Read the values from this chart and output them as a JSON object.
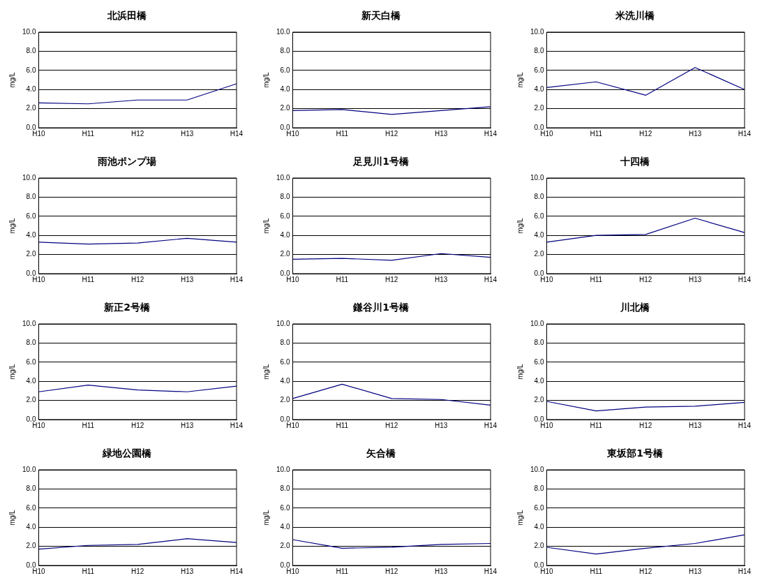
{
  "chart_data": [
    {
      "type": "line",
      "title": "北浜田橋",
      "categories": [
        "H10",
        "H11",
        "H12",
        "H13",
        "H14"
      ],
      "ylabel": "mg/L",
      "ylim": [
        0,
        10
      ],
      "yticks": [
        {
          "value": 0,
          "label": "0.0"
        },
        {
          "value": 2,
          "label": "2.0"
        },
        {
          "value": 4,
          "label": "4.0"
        },
        {
          "value": 6,
          "label": "6.0"
        },
        {
          "value": 8,
          "label": "8.0"
        },
        {
          "value": 10,
          "label": "10.0"
        }
      ],
      "grid": "y",
      "legend": false,
      "marker": "none",
      "series": [
        {
          "color": "#000080",
          "values": [
            2.6,
            2.5,
            2.9,
            2.9,
            4.6
          ]
        }
      ]
    },
    {
      "type": "line",
      "title": "新天白橋",
      "categories": [
        "H10",
        "H11",
        "H12",
        "H13",
        "H14"
      ],
      "ylabel": "mg/L",
      "ylim": [
        0,
        10
      ],
      "yticks": [
        {
          "value": 0,
          "label": "0.0"
        },
        {
          "value": 2,
          "label": "2.0"
        },
        {
          "value": 4,
          "label": "4.0"
        },
        {
          "value": 6,
          "label": "6.0"
        },
        {
          "value": 8,
          "label": "8.0"
        },
        {
          "value": 10,
          "label": "10.0"
        }
      ],
      "grid": "y",
      "legend": false,
      "marker": "none",
      "series": [
        {
          "color": "#000080",
          "values": [
            1.8,
            1.9,
            1.4,
            1.8,
            2.2
          ]
        }
      ]
    },
    {
      "type": "line",
      "title": "米洗川橋",
      "categories": [
        "H10",
        "H11",
        "H12",
        "H13",
        "H14"
      ],
      "ylabel": "mg/L",
      "ylim": [
        0,
        10
      ],
      "yticks": [
        {
          "value": 0,
          "label": "0.0"
        },
        {
          "value": 2,
          "label": "2.0"
        },
        {
          "value": 4,
          "label": "4.0"
        },
        {
          "value": 6,
          "label": "6.0"
        },
        {
          "value": 8,
          "label": "8.0"
        },
        {
          "value": 10,
          "label": "10.0"
        }
      ],
      "grid": "y",
      "legend": false,
      "marker": "none",
      "series": [
        {
          "color": "#000080",
          "values": [
            4.2,
            4.8,
            3.4,
            6.3,
            4.0
          ]
        }
      ]
    },
    {
      "type": "line",
      "title": "雨池ポンプ場",
      "categories": [
        "H10",
        "H11",
        "H12",
        "H13",
        "H14"
      ],
      "ylabel": "mg/L",
      "ylim": [
        0,
        10
      ],
      "yticks": [
        {
          "value": 0,
          "label": "0.0"
        },
        {
          "value": 2,
          "label": "2.0"
        },
        {
          "value": 4,
          "label": "4.0"
        },
        {
          "value": 6,
          "label": "6.0"
        },
        {
          "value": 8,
          "label": "8.0"
        },
        {
          "value": 10,
          "label": "10.0"
        }
      ],
      "grid": "y",
      "legend": false,
      "marker": "none",
      "series": [
        {
          "color": "#000080",
          "values": [
            3.3,
            3.1,
            3.2,
            3.7,
            3.3
          ]
        }
      ]
    },
    {
      "type": "line",
      "title": "足見川1号橋",
      "categories": [
        "H10",
        "H11",
        "H12",
        "H13",
        "H14"
      ],
      "ylabel": "mg/L",
      "ylim": [
        0,
        10
      ],
      "yticks": [
        {
          "value": 0,
          "label": "0.0"
        },
        {
          "value": 2,
          "label": "2.0"
        },
        {
          "value": 4,
          "label": "4.0"
        },
        {
          "value": 6,
          "label": "6.0"
        },
        {
          "value": 8,
          "label": "8.0"
        },
        {
          "value": 10,
          "label": "10.0"
        }
      ],
      "grid": "y",
      "legend": false,
      "marker": "none",
      "series": [
        {
          "color": "#000080",
          "values": [
            1.5,
            1.6,
            1.4,
            2.1,
            1.7
          ]
        }
      ]
    },
    {
      "type": "line",
      "title": "十四橋",
      "categories": [
        "H10",
        "H11",
        "H12",
        "H13",
        "H14"
      ],
      "ylabel": "mg/L",
      "ylim": [
        0,
        10
      ],
      "yticks": [
        {
          "value": 0,
          "label": "0.0"
        },
        {
          "value": 2,
          "label": "2.0"
        },
        {
          "value": 4,
          "label": "4.0"
        },
        {
          "value": 6,
          "label": "6.0"
        },
        {
          "value": 8,
          "label": "8.0"
        },
        {
          "value": 10,
          "label": "10.0"
        }
      ],
      "grid": "y",
      "legend": false,
      "marker": "none",
      "series": [
        {
          "color": "#000080",
          "values": [
            3.3,
            4.0,
            4.1,
            5.8,
            4.3
          ]
        }
      ]
    },
    {
      "type": "line",
      "title": "新正2号橋",
      "categories": [
        "H10",
        "H11",
        "H12",
        "H13",
        "H14"
      ],
      "ylabel": "mg/L",
      "ylim": [
        0,
        10
      ],
      "yticks": [
        {
          "value": 0,
          "label": "0.0"
        },
        {
          "value": 2,
          "label": "2.0"
        },
        {
          "value": 4,
          "label": "4.0"
        },
        {
          "value": 6,
          "label": "6.0"
        },
        {
          "value": 8,
          "label": "8.0"
        },
        {
          "value": 10,
          "label": "10.0"
        }
      ],
      "grid": "y",
      "legend": false,
      "marker": "none",
      "series": [
        {
          "color": "#000080",
          "values": [
            2.9,
            3.6,
            3.1,
            2.9,
            3.5
          ]
        }
      ]
    },
    {
      "type": "line",
      "title": "鎌谷川1号橋",
      "categories": [
        "H10",
        "H11",
        "H12",
        "H13",
        "H14"
      ],
      "ylabel": "mg/L",
      "ylim": [
        0,
        10
      ],
      "yticks": [
        {
          "value": 0,
          "label": "0.0"
        },
        {
          "value": 2,
          "label": "2.0"
        },
        {
          "value": 4,
          "label": "4.0"
        },
        {
          "value": 6,
          "label": "6.0"
        },
        {
          "value": 8,
          "label": "8.0"
        },
        {
          "value": 10,
          "label": "10.0"
        }
      ],
      "grid": "y",
      "legend": false,
      "marker": "none",
      "series": [
        {
          "color": "#000080",
          "values": [
            2.2,
            3.7,
            2.2,
            2.1,
            1.5
          ]
        }
      ]
    },
    {
      "type": "line",
      "title": "川北橋",
      "categories": [
        "H10",
        "H11",
        "H12",
        "H13",
        "H14"
      ],
      "ylabel": "mg/L",
      "ylim": [
        0,
        10
      ],
      "yticks": [
        {
          "value": 0,
          "label": "0.0"
        },
        {
          "value": 2,
          "label": "2.0"
        },
        {
          "value": 4,
          "label": "4.0"
        },
        {
          "value": 6,
          "label": "6.0"
        },
        {
          "value": 8,
          "label": "8.0"
        },
        {
          "value": 10,
          "label": "10.0"
        }
      ],
      "grid": "y",
      "legend": false,
      "marker": "none",
      "series": [
        {
          "color": "#000080",
          "values": [
            1.9,
            0.9,
            1.3,
            1.4,
            1.8
          ]
        }
      ]
    },
    {
      "type": "line",
      "title": "緑地公園橋",
      "categories": [
        "H10",
        "H11",
        "H12",
        "H13",
        "H14"
      ],
      "ylabel": "mg/L",
      "ylim": [
        0,
        10
      ],
      "yticks": [
        {
          "value": 0,
          "label": "0.0"
        },
        {
          "value": 2,
          "label": "2.0"
        },
        {
          "value": 4,
          "label": "4.0"
        },
        {
          "value": 6,
          "label": "6.0"
        },
        {
          "value": 8,
          "label": "8.0"
        },
        {
          "value": 10,
          "label": "10.0"
        }
      ],
      "grid": "y",
      "legend": false,
      "marker": "none",
      "series": [
        {
          "color": "#000080",
          "values": [
            1.7,
            2.1,
            2.2,
            2.8,
            2.4
          ]
        }
      ]
    },
    {
      "type": "line",
      "title": "矢合橋",
      "categories": [
        "H10",
        "H11",
        "H12",
        "H13",
        "H14"
      ],
      "ylabel": "mg/L",
      "ylim": [
        0,
        10
      ],
      "yticks": [
        {
          "value": 0,
          "label": "0.0"
        },
        {
          "value": 2,
          "label": "2.0"
        },
        {
          "value": 4,
          "label": "4.0"
        },
        {
          "value": 6,
          "label": "6.0"
        },
        {
          "value": 8,
          "label": "8.0"
        },
        {
          "value": 10,
          "label": "10.0"
        }
      ],
      "grid": "y",
      "legend": false,
      "marker": "none",
      "series": [
        {
          "color": "#000080",
          "values": [
            2.7,
            1.8,
            1.9,
            2.2,
            2.3
          ]
        }
      ]
    },
    {
      "type": "line",
      "title": "東坂部1号橋",
      "categories": [
        "H10",
        "H11",
        "H12",
        "H13",
        "H14"
      ],
      "ylabel": "mg/L",
      "ylim": [
        0,
        10
      ],
      "yticks": [
        {
          "value": 0,
          "label": "0.0"
        },
        {
          "value": 2,
          "label": "2.0"
        },
        {
          "value": 4,
          "label": "4.0"
        },
        {
          "value": 6,
          "label": "6.0"
        },
        {
          "value": 8,
          "label": "8.0"
        },
        {
          "value": 10,
          "label": "10.0"
        }
      ],
      "grid": "y",
      "legend": false,
      "marker": "none",
      "series": [
        {
          "color": "#000080",
          "values": [
            1.9,
            1.2,
            1.8,
            2.3,
            3.2
          ]
        }
      ]
    }
  ]
}
